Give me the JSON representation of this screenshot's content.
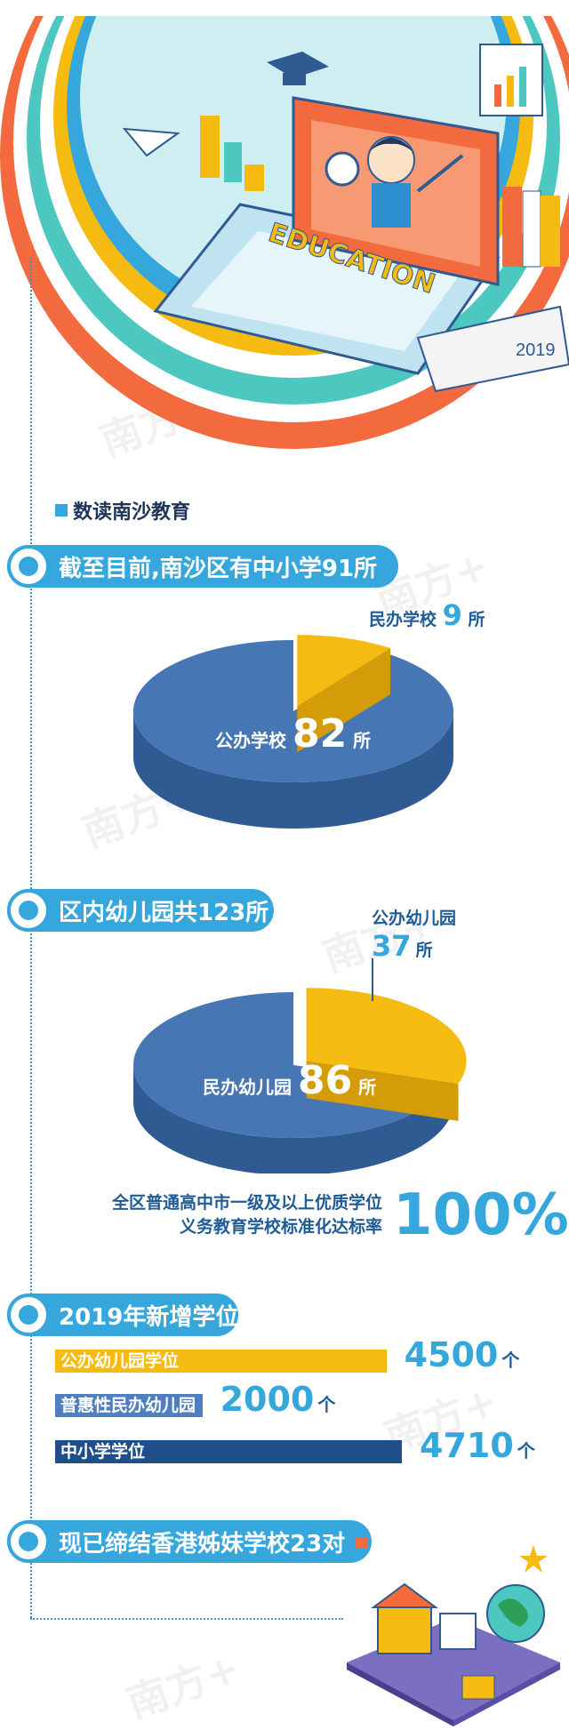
{
  "header": {
    "section_title": "数读南沙教育",
    "illustration_word": "EDUCATION",
    "illustration_year": "2019"
  },
  "watermark": "南方+",
  "banners": [
    {
      "text": "截至目前,南沙区有中小学91所"
    },
    {
      "text": "区内幼儿园共123所"
    },
    {
      "text": "2019年新增学位"
    },
    {
      "text": "现已缔结香港姊妹学校23对"
    }
  ],
  "unit_suo": "所",
  "unit_ge": "个",
  "rate": {
    "lines": [
      "全区普通高中市一级及以上优质学位",
      "义务教育学校标准化达标率"
    ],
    "value": "100%"
  },
  "colors": {
    "blue": "#35a7dc",
    "navy": "#1f4e8a",
    "pie_blue": "#4676b4",
    "pie_blue_side": "#2f5a92",
    "yellow": "#f5bb10",
    "yellow_side": "#d39c08",
    "orange": "#f26a3d",
    "teal": "#4cc8c0"
  },
  "chart_data": [
    {
      "type": "pie",
      "title": "截至目前,南沙区有中小学91所",
      "categories": [
        "公办学校",
        "民办学校"
      ],
      "values": [
        82,
        9
      ],
      "unit": "所"
    },
    {
      "type": "pie",
      "title": "区内幼儿园共123所",
      "categories": [
        "民办幼儿园",
        "公办幼儿园"
      ],
      "values": [
        86,
        37
      ],
      "unit": "所"
    },
    {
      "type": "bar",
      "title": "2019年新增学位",
      "categories": [
        "公办幼儿园学位",
        "普惠性民办幼儿园",
        "中小学学位"
      ],
      "values": [
        4500,
        2000,
        4710
      ],
      "unit": "个",
      "colors": [
        "#f5bb10",
        "#4f7fc0",
        "#1f4e8a"
      ]
    }
  ]
}
